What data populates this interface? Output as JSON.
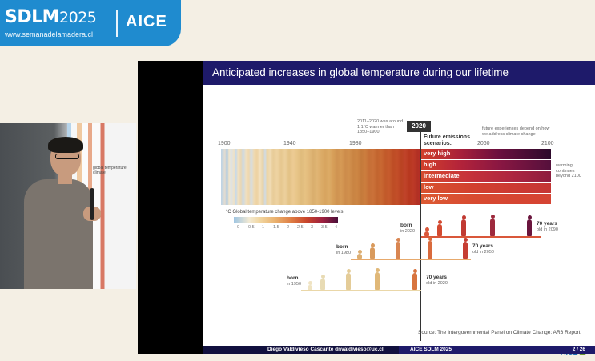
{
  "brand": {
    "logo_main": "SDLM",
    "logo_year": "2025",
    "site": "www.semanadelamadera.cl",
    "partner": "AICE"
  },
  "video": {
    "poster_text": "global temperature climate"
  },
  "slide": {
    "title": "Anticipated increases in global temperature during our lifetime",
    "year_labels": [
      "1900",
      "1940",
      "1980",
      "2060",
      "2100"
    ],
    "current_year": "2020",
    "annotation_2011": "2011–2020 was around 1.1°C warmer than 1850–1900",
    "annotation_future": "future experiences depend on how we address climate change",
    "future_title": "Future emissions scenarios:",
    "scenarios": [
      "very high",
      "high",
      "intermediate",
      "low",
      "very low"
    ],
    "warming_note": "warming continues beyond 2100",
    "legend_title": "°C  Global temperature change above 1850-1900 levels",
    "legend_ticks": [
      "0",
      "0.5",
      "1",
      "1.5",
      "2",
      "2.5",
      "3",
      "3.5",
      "4"
    ],
    "generations": [
      {
        "born": "born",
        "born_year": "in 2020",
        "old": "70 years",
        "old_year": "old in 2090"
      },
      {
        "born": "born",
        "born_year": "in 1980",
        "old": "70 years",
        "old_year": "old in 2050"
      },
      {
        "born": "born",
        "born_year": "in 1950",
        "old": "70 years",
        "old_year": "old in 2020"
      }
    ],
    "source": "Source: The Intergovernmental Panel on Climate Change: AR6 Report",
    "corner_logo": "AICE"
  },
  "footer": {
    "speaker": "Diego Valdivieso Cascante dnvaldivieso@uc.cl",
    "event": "AICE SDLM 2025",
    "page": "2 / 26"
  },
  "colors": {
    "brand_blue": "#1f8bcf",
    "slide_header": "#1e1a6a",
    "footer_dark": "#11103e"
  }
}
